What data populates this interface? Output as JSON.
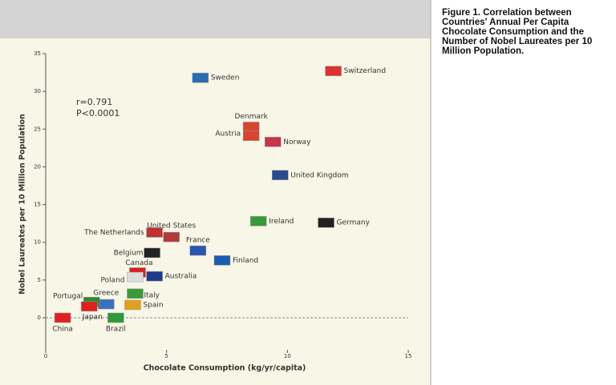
{
  "chart_data": {
    "type": "scatter",
    "title": "Figure 1. Correlation between Countries' Annual Per Capita Chocolate Consumption and the Number of Nobel Laureates per 10 Million Population.",
    "xlabel": "Chocolate Consumption (kg/yr/capita)",
    "ylabel": "Nobel Laureates per 10 Million Population",
    "annotations": [
      "r=0.791",
      "P<0.0001"
    ],
    "labels": [
      "Switzerland",
      "Sweden",
      "Denmark",
      "Austria",
      "Norway",
      "United Kingdom",
      "Germany",
      "Ireland",
      "Finland",
      "France",
      "United States",
      "The Netherlands",
      "Belgium",
      "Canada",
      "Australia",
      "Poland",
      "Italy",
      "Spain",
      "Greece",
      "Portugal",
      "Japan",
      "Brazil",
      "China"
    ],
    "x": [
      11.9,
      6.4,
      8.5,
      8.5,
      9.4,
      9.7,
      11.6,
      8.8,
      7.3,
      6.3,
      5.2,
      4.5,
      4.4,
      3.8,
      4.5,
      3.7,
      3.7,
      3.6,
      2.5,
      1.9,
      1.8,
      2.9,
      0.7
    ],
    "values": [
      32.7,
      31.8,
      25.3,
      24.1,
      23.3,
      18.9,
      12.6,
      12.8,
      7.6,
      8.9,
      10.7,
      11.3,
      8.6,
      6.0,
      5.5,
      5.4,
      3.2,
      1.7,
      1.8,
      2.1,
      1.5,
      0.0,
      0.0
    ],
    "colors": [
      "#e03030",
      "#2a6bb5",
      "#d8452f",
      "#d8452f",
      "#c8344a",
      "#2b4a8c",
      "#222222",
      "#3a9a3a",
      "#1c5cb0",
      "#2a55b0",
      "#b03a3a",
      "#c03030",
      "#222222",
      "#d82020",
      "#203a8c",
      "#dddddd",
      "#3a9a3a",
      "#e0a020",
      "#3a6ec0",
      "#2f8a2f",
      "#e02020",
      "#2e9a3a",
      "#e02020"
    ],
    "xlim": [
      0,
      15
    ],
    "ylim": [
      0,
      35
    ],
    "xticks": [
      0,
      5,
      10,
      15
    ],
    "yticks": [
      0,
      5,
      10,
      15,
      20,
      25,
      30,
      35
    ]
  }
}
